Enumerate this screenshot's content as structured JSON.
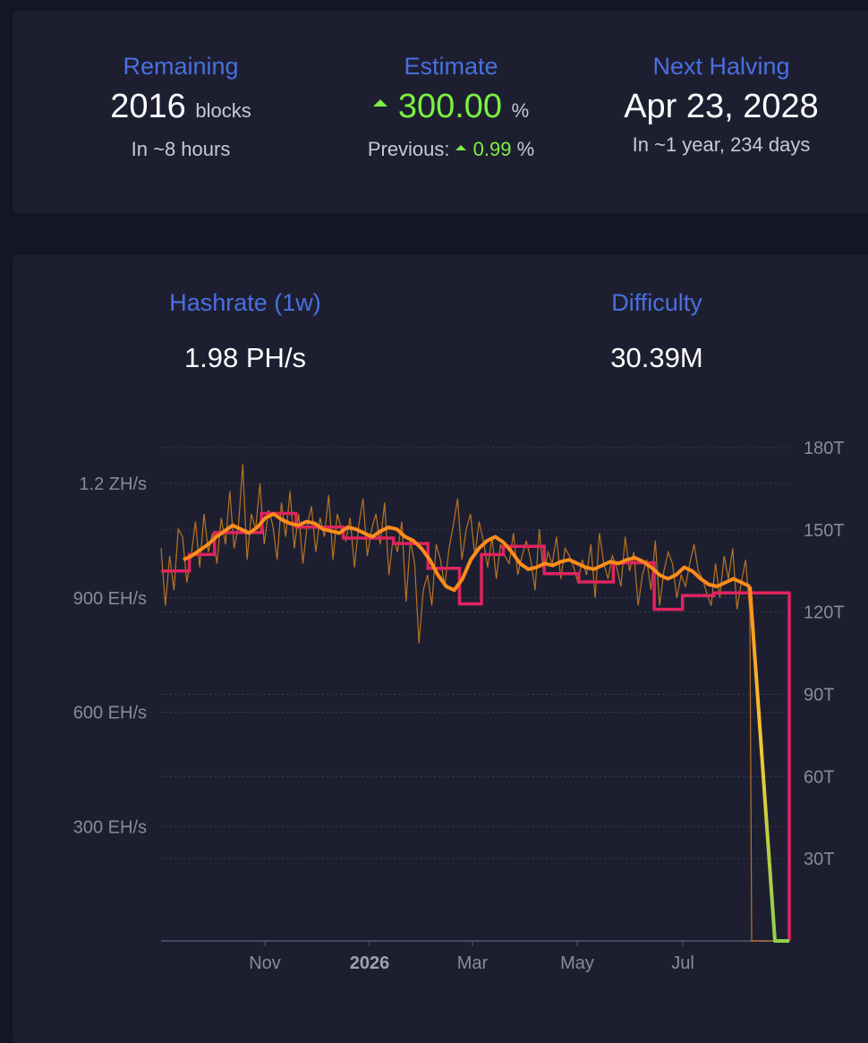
{
  "stats": {
    "remaining": {
      "title": "Remaining",
      "value": "2016",
      "unit": "blocks",
      "sub": "In ~8 hours"
    },
    "estimate": {
      "title": "Estimate",
      "value": "300.00",
      "unit": "%",
      "previous_label": "Previous:",
      "previous_value": "0.99",
      "previous_unit": "%",
      "direction": "up"
    },
    "next_halving": {
      "title": "Next Halving",
      "value": "Apr 23, 2028",
      "sub": "In ~1 year, 234 days"
    }
  },
  "metrics": {
    "hashrate": {
      "title": "Hashrate (1w)",
      "value": "1.98 PH/s"
    },
    "difficulty": {
      "title": "Difficulty",
      "value": "30.39M"
    }
  },
  "colors": {
    "accent_title": "#4a6fe0",
    "positive": "#7cf13f",
    "hashrate_raw": "#e08a1e",
    "hashrate_avg": "#ff8c1a",
    "difficulty": "#e0245e",
    "avg_tail": "#8fd14f"
  },
  "chart_data": {
    "type": "line",
    "title": "",
    "x_labels": [
      "Nov",
      "2026",
      "Mar",
      "May",
      "Jul"
    ],
    "x_label_bold": [
      false,
      true,
      false,
      false,
      false
    ],
    "y_left": {
      "unit": "hashrate",
      "ticks": [
        "300 EH/s",
        "600 EH/s",
        "900 EH/s",
        "1.2 ZH/s"
      ],
      "tick_values": [
        300,
        600,
        900,
        1200
      ],
      "range": [
        0,
        1200
      ]
    },
    "y_right": {
      "unit": "difficulty",
      "ticks": [
        "30T",
        "60T",
        "90T",
        "120T",
        "150T",
        "180T"
      ],
      "tick_values": [
        30,
        60,
        90,
        120,
        150,
        180
      ],
      "range": [
        0,
        180
      ]
    },
    "grid": true,
    "series": [
      {
        "name": "",
        "kind": "hashrate_raw",
        "values_eh": [
          1030,
          880,
          1010,
          920,
          1080,
          1060,
          940,
          1010,
          1100,
          980,
          1120,
          1020,
          1070,
          990,
          1110,
          1040,
          1180,
          1030,
          1090,
          1250,
          1000,
          1120,
          1080,
          1200,
          1040,
          1130,
          1090,
          1000,
          1150,
          1060,
          1180,
          1030,
          1120,
          990,
          1090,
          1140,
          1020,
          1110,
          1060,
          1170,
          1000,
          1120,
          1080,
          1050,
          1110,
          980,
          1090,
          1160,
          1010,
          1080,
          1120,
          1040,
          1150,
          960,
          1060,
          1020,
          1100,
          890,
          1050,
          990,
          780,
          920,
          960,
          880,
          1040,
          1000,
          930,
          1030,
          1090,
          1160,
          1000,
          1080,
          1120,
          1010,
          1100,
          1050,
          980,
          1060,
          950,
          1040,
          1010,
          990,
          1070,
          960,
          1010,
          1050,
          1000,
          920,
          1080,
          960,
          1020,
          990,
          1060,
          950,
          1030,
          1010,
          980,
          940,
          1000,
          960,
          1040,
          900,
          1070,
          990,
          950,
          1010,
          980,
          930,
          1060,
          970,
          1020,
          880,
          960,
          1000,
          920,
          1050,
          880,
          970,
          1020,
          990,
          900,
          960,
          930,
          990,
          1040,
          970,
          950,
          910,
          880,
          990,
          900,
          1010,
          950,
          1030,
          870,
          940,
          1000,
          860
        ],
        "avg_eh": [
          1000,
          1010,
          1025,
          1040,
          1060,
          1075,
          1090,
          1080,
          1070,
          1085,
          1110,
          1120,
          1105,
          1095,
          1090,
          1100,
          1095,
          1080,
          1075,
          1070,
          1085,
          1080,
          1070,
          1060,
          1075,
          1085,
          1080,
          1060,
          1050,
          1030,
          1000,
          960,
          930,
          920,
          950,
          1000,
          1030,
          1050,
          1060,
          1045,
          1020,
          990,
          975,
          980,
          990,
          985,
          995,
          1000,
          990,
          980,
          975,
          985,
          995,
          990,
          1000,
          1005,
          995,
          980,
          960,
          950,
          960,
          980,
          970,
          950,
          935,
          930,
          940,
          950,
          940,
          930
        ]
      },
      {
        "name": "",
        "kind": "difficulty_steps_T",
        "steps": [
          {
            "from": 0.0,
            "to": 0.045,
            "value": 135
          },
          {
            "from": 0.045,
            "to": 0.085,
            "value": 141
          },
          {
            "from": 0.085,
            "to": 0.16,
            "value": 149
          },
          {
            "from": 0.16,
            "to": 0.215,
            "value": 156
          },
          {
            "from": 0.215,
            "to": 0.29,
            "value": 151
          },
          {
            "from": 0.29,
            "to": 0.37,
            "value": 147
          },
          {
            "from": 0.37,
            "to": 0.425,
            "value": 145
          },
          {
            "from": 0.425,
            "to": 0.475,
            "value": 136
          },
          {
            "from": 0.475,
            "to": 0.51,
            "value": 123
          },
          {
            "from": 0.51,
            "to": 0.545,
            "value": 141
          },
          {
            "from": 0.545,
            "to": 0.61,
            "value": 144
          },
          {
            "from": 0.61,
            "to": 0.665,
            "value": 134
          },
          {
            "from": 0.665,
            "to": 0.72,
            "value": 131
          },
          {
            "from": 0.72,
            "to": 0.785,
            "value": 138
          },
          {
            "from": 0.785,
            "to": 0.83,
            "value": 121
          },
          {
            "from": 0.83,
            "to": 0.88,
            "value": 126
          },
          {
            "from": 0.88,
            "to": 1.0,
            "value": 127
          }
        ],
        "final_drop": 0
      }
    ]
  }
}
